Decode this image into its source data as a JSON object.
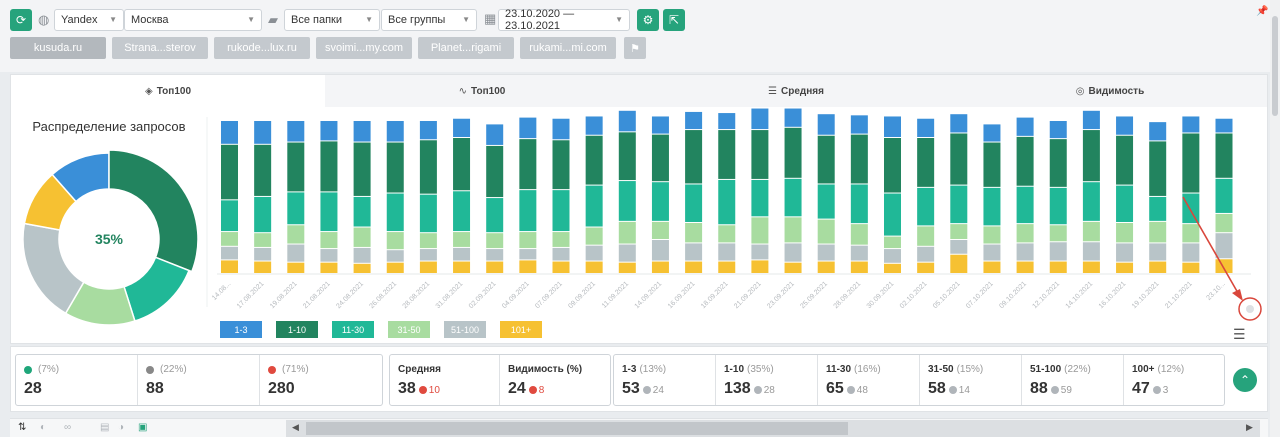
{
  "toolbar": {
    "search_engine": "Yandex",
    "region": "Москва",
    "folders": "Все папки",
    "groups": "Все группы",
    "date_range": "23.10.2020 — 23.10.2021"
  },
  "sites": [
    {
      "label": "kusuda.ru",
      "active": true
    },
    {
      "label": "Strana...sterov",
      "active": false
    },
    {
      "label": "rukode...lux.ru",
      "active": false
    },
    {
      "label": "svoimi...my.com",
      "active": false
    },
    {
      "label": "Planet...rigami",
      "active": false
    },
    {
      "label": "rukami...mi.com",
      "active": false
    }
  ],
  "tabs": [
    {
      "label": "Топ100",
      "icon": "layers-icon",
      "active": true
    },
    {
      "label": "Топ100",
      "icon": "trend-icon",
      "active": false
    },
    {
      "label": "Средняя",
      "icon": "lines-icon",
      "active": false
    },
    {
      "label": "Видимость",
      "icon": "glasses-icon",
      "active": false
    }
  ],
  "donut": {
    "title": "Распределение запросов",
    "center_label": "35%",
    "segments": [
      {
        "name": "1-3",
        "value": 13,
        "color": "#3a8fd8"
      },
      {
        "name": "1-10",
        "value": 35,
        "color": "#22845f"
      },
      {
        "name": "11-30",
        "value": 16,
        "color": "#20b897"
      },
      {
        "name": "31-50",
        "value": 15,
        "color": "#a8dca0"
      },
      {
        "name": "51-100",
        "value": 22,
        "color": "#b8c4c8"
      },
      {
        "name": "101+",
        "value": 12,
        "color": "#f6c132"
      }
    ]
  },
  "chart_data": {
    "type": "bar",
    "stacked": true,
    "categories": [
      "14.08...",
      "17.08.2021",
      "19.08.2021",
      "21.08.2021",
      "24.08.2021",
      "26.08.2021",
      "28.08.2021",
      "31.08.2021",
      "02.09.2021",
      "04.09.2021",
      "07.09.2021",
      "09.09.2021",
      "11.09.2021",
      "14.09.2021",
      "16.09.2021",
      "18.09.2021",
      "21.09.2021",
      "23.09.2021",
      "25.09.2021",
      "28.09.2021",
      "30.09.2021",
      "02.10.2021",
      "05.10.2021",
      "07.10.2021",
      "09.10.2021",
      "12.10.2021",
      "14.10.2021",
      "16.10.2021",
      "19.10.2021",
      "21.10.2021",
      "23.10..."
    ],
    "series": [
      {
        "name": "101+",
        "color": "#f6c132",
        "values": [
          12,
          11,
          10,
          10,
          9,
          10,
          11,
          11,
          11,
          12,
          11,
          11,
          10,
          11,
          11,
          11,
          12,
          10,
          11,
          11,
          9,
          10,
          17,
          11,
          11,
          11,
          11,
          10,
          11,
          10,
          13
        ]
      },
      {
        "name": "51-100",
        "color": "#b8c4c8",
        "values": [
          12,
          12,
          16,
          12,
          14,
          11,
          11,
          12,
          11,
          10,
          12,
          14,
          16,
          19,
          16,
          16,
          14,
          17,
          15,
          14,
          13,
          14,
          13,
          15,
          16,
          17,
          17,
          17,
          16,
          17,
          23
        ]
      },
      {
        "name": "31-50",
        "color": "#a8dca0",
        "values": [
          13,
          13,
          17,
          15,
          18,
          16,
          14,
          14,
          14,
          15,
          14,
          16,
          20,
          16,
          18,
          16,
          24,
          23,
          22,
          19,
          11,
          18,
          14,
          16,
          17,
          15,
          18,
          18,
          19,
          17,
          17
        ]
      },
      {
        "name": "11-30",
        "color": "#20b897",
        "values": [
          28,
          32,
          29,
          35,
          27,
          34,
          34,
          36,
          31,
          37,
          37,
          37,
          36,
          35,
          34,
          40,
          33,
          34,
          31,
          35,
          38,
          34,
          34,
          34,
          33,
          33,
          35,
          33,
          22,
          27,
          31
        ]
      },
      {
        "name": "1-10",
        "color": "#22845f",
        "values": [
          49,
          46,
          44,
          45,
          48,
          45,
          48,
          47,
          46,
          45,
          44,
          44,
          43,
          42,
          48,
          44,
          44,
          45,
          43,
          44,
          49,
          44,
          46,
          40,
          44,
          43,
          46,
          44,
          49,
          53,
          40
        ]
      },
      {
        "name": "1-3",
        "color": "#3a8fd8",
        "values": [
          21,
          21,
          19,
          18,
          19,
          19,
          17,
          17,
          19,
          19,
          19,
          17,
          19,
          16,
          16,
          15,
          19,
          17,
          19,
          17,
          19,
          17,
          17,
          16,
          17,
          16,
          17,
          17,
          17,
          15,
          13
        ]
      }
    ],
    "legend": [
      "1-3",
      "1-10",
      "11-30",
      "31-50",
      "51-100",
      "101+"
    ]
  },
  "stats": {
    "moves": [
      {
        "icon": "up",
        "pct": "(7%)",
        "value": "28"
      },
      {
        "icon": "zero",
        "pct": "(22%)",
        "value": "88"
      },
      {
        "icon": "down",
        "pct": "(71%)",
        "value": "280"
      }
    ],
    "avg": {
      "label": "Средняя",
      "value": "38",
      "delta": "10",
      "dir": "down"
    },
    "vis": {
      "label": "Видимость (%)",
      "value": "24",
      "delta": "8",
      "dir": "down"
    },
    "ranges": [
      {
        "label": "1-3",
        "pct": "(13%)",
        "value": "53",
        "delta": "24"
      },
      {
        "label": "1-10",
        "pct": "(35%)",
        "value": "138",
        "delta": "28"
      },
      {
        "label": "11-30",
        "pct": "(16%)",
        "value": "65",
        "delta": "48"
      },
      {
        "label": "31-50",
        "pct": "(15%)",
        "value": "58",
        "delta": "14"
      },
      {
        "label": "51-100",
        "pct": "(22%)",
        "value": "88",
        "delta": "59"
      },
      {
        "label": "100+",
        "pct": "(12%)",
        "value": "47",
        "delta": "3"
      }
    ]
  }
}
